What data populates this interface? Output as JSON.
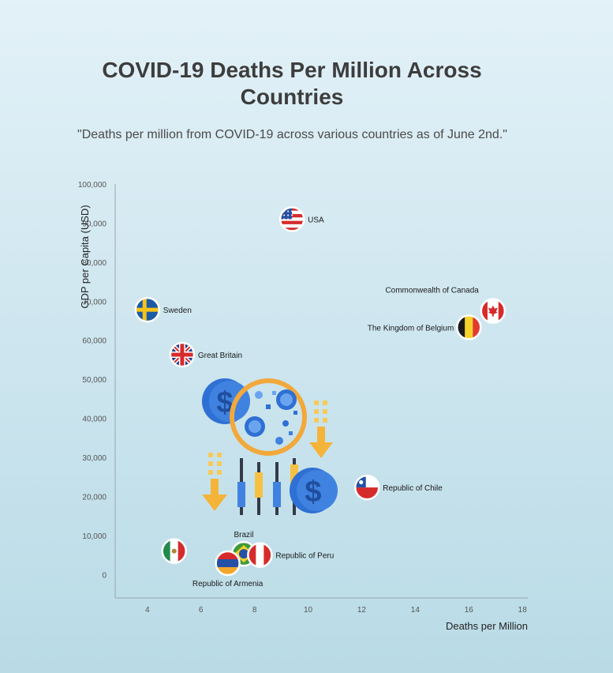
{
  "title": "COVID-19 Deaths Per Million Across Countries",
  "subtitle": "\"Deaths per million from COVID-19 across various countries as of June 2nd.\"",
  "chart_data": {
    "type": "scatter",
    "xlabel": "Deaths per Million",
    "ylabel": "GDP per Capita (USD)",
    "xlim": [
      2.8,
      18.2
    ],
    "ylim": [
      -6000,
      100000
    ],
    "xticks": [
      4,
      6,
      8,
      10,
      12,
      14,
      16,
      18
    ],
    "yticks": [
      0,
      10000,
      20000,
      30000,
      40000,
      50000,
      60000,
      70000,
      80000,
      90000,
      100000
    ],
    "ytick_labels": [
      "0",
      "10,000",
      "20,000",
      "30,000",
      "40,000",
      "50,000",
      "60,000",
      "70,000",
      "80,000",
      "90,000",
      "100,000"
    ],
    "points": [
      {
        "label": "USA",
        "x": 9.4,
        "y": 91000,
        "flag": "usa",
        "label_pos": "right"
      },
      {
        "label": "Sweden",
        "x": 4.0,
        "y": 67800,
        "flag": "sweden",
        "label_pos": "right"
      },
      {
        "label": "Great Britain",
        "x": 5.3,
        "y": 56300,
        "flag": "great-britain",
        "label_pos": "right"
      },
      {
        "label": "Commonwealth of Canada",
        "x": 16.9,
        "y": 67500,
        "flag": "canada",
        "label_pos": "top-left"
      },
      {
        "label": "The Kingdom of Belgium",
        "x": 16.0,
        "y": 63300,
        "flag": "belgium",
        "label_pos": "left"
      },
      {
        "label": "Republic of Chile",
        "x": 12.2,
        "y": 22300,
        "flag": "chile",
        "label_pos": "right"
      },
      {
        "label": "",
        "x": 5.0,
        "y": 6000,
        "flag": "mexico",
        "label_pos": "none"
      },
      {
        "label": "Brazil",
        "x": 7.6,
        "y": 5300,
        "flag": "brazil",
        "label_pos": "top"
      },
      {
        "label": "Republic of Peru",
        "x": 8.2,
        "y": 5000,
        "flag": "peru",
        "label_pos": "right"
      },
      {
        "label": "Republic of Armenia",
        "x": 7.0,
        "y": 2900,
        "flag": "armenia",
        "label_pos": "bottom"
      }
    ],
    "grid": false,
    "legend": "none"
  }
}
